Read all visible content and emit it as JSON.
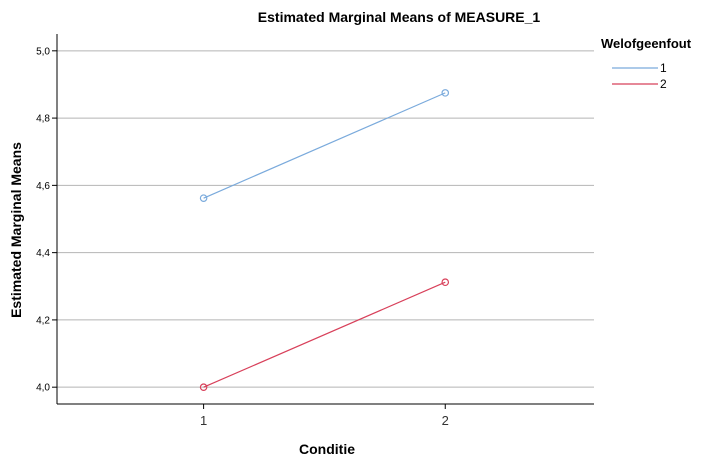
{
  "chart_data": {
    "type": "line",
    "title": "Estimated Marginal Means of MEASURE_1",
    "xlabel": "Conditie",
    "ylabel": "Estimated Marginal Means",
    "categories": [
      "1",
      "2"
    ],
    "ylim": [
      3.95,
      5.05
    ],
    "yticks": [
      {
        "value": 4.0,
        "label": "4,0"
      },
      {
        "value": 4.2,
        "label": "4,2"
      },
      {
        "value": 4.4,
        "label": "4,4"
      },
      {
        "value": 4.6,
        "label": "4,6"
      },
      {
        "value": 4.8,
        "label": "4,8"
      },
      {
        "value": 5.0,
        "label": "5,0"
      }
    ],
    "grid": true,
    "legend_title": "Welofgeenfout",
    "legend_position": "top-right",
    "series": [
      {
        "name": "1",
        "color": "#7aaadc",
        "values": [
          4.562,
          4.875
        ]
      },
      {
        "name": "2",
        "color": "#d8405a",
        "values": [
          4.0,
          4.312
        ]
      }
    ]
  }
}
